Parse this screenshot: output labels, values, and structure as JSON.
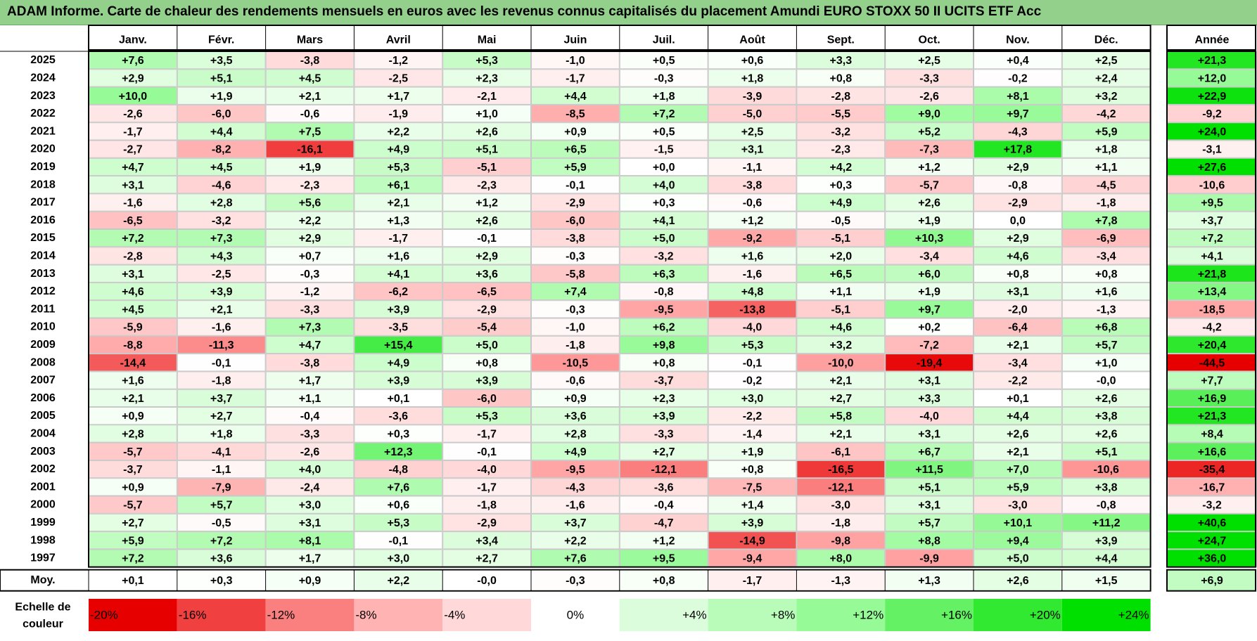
{
  "title": "ADAM Informe. Carte de chaleur des rendements mensuels en euros avec les revenus connus capitalisés du placement Amundi EURO STOXX 50 II UCITS ETF Acc",
  "colors": {
    "title_bg": "#92d08c",
    "neg_max": "#ff0000",
    "pos_max": "#00e000",
    "neutral": "#ffffff"
  },
  "chart_data": {
    "type": "heatmap",
    "title": "ADAM Informe. Carte de chaleur des rendements mensuels en euros avec les revenus connus capitalisés du placement Amundi EURO STOXX 50 II UCITS ETF Acc",
    "months": [
      "Janv.",
      "Févr.",
      "Mars",
      "Avril",
      "Mai",
      "Juin",
      "Juil.",
      "Août",
      "Sept.",
      "Oct.",
      "Nov.",
      "Déc."
    ],
    "year_header": "Année",
    "rows": [
      {
        "year": "2025",
        "values": [
          "+7,6",
          "+3,5",
          "-3,8",
          "-1,2",
          "+5,3",
          "-1,0",
          "+0,5",
          "+0,6",
          "+3,3",
          "+2,5",
          "+0,4",
          "+2,5"
        ],
        "total": "+21,3"
      },
      {
        "year": "2024",
        "values": [
          "+2,9",
          "+5,1",
          "+4,5",
          "-2,5",
          "+2,3",
          "-1,7",
          "-0,3",
          "+1,8",
          "+0,8",
          "-3,3",
          "-0,2",
          "+2,4"
        ],
        "total": "+12,0"
      },
      {
        "year": "2023",
        "values": [
          "+10,0",
          "+1,9",
          "+2,1",
          "+1,7",
          "-2,1",
          "+4,4",
          "+1,8",
          "-3,9",
          "-2,8",
          "-2,6",
          "+8,1",
          "+3,2"
        ],
        "total": "+22,9"
      },
      {
        "year": "2022",
        "values": [
          "-2,6",
          "-6,0",
          "-0,6",
          "-1,9",
          "+1,0",
          "-8,5",
          "+7,2",
          "-5,0",
          "-5,5",
          "+9,0",
          "+9,7",
          "-4,2"
        ],
        "total": "-9,2"
      },
      {
        "year": "2021",
        "values": [
          "-1,7",
          "+4,4",
          "+7,5",
          "+2,2",
          "+2,6",
          "+0,9",
          "+0,5",
          "+2,5",
          "-3,2",
          "+5,2",
          "-4,3",
          "+5,9"
        ],
        "total": "+24,0"
      },
      {
        "year": "2020",
        "values": [
          "-2,7",
          "-8,2",
          "-16,1",
          "+4,9",
          "+5,1",
          "+6,5",
          "-1,5",
          "+3,1",
          "-2,3",
          "-7,3",
          "+17,8",
          "+1,8"
        ],
        "total": "-3,1"
      },
      {
        "year": "2019",
        "values": [
          "+4,7",
          "+4,5",
          "+1,9",
          "+5,3",
          "-5,1",
          "+5,9",
          "+0,0",
          "-1,1",
          "+4,2",
          "+1,2",
          "+2,9",
          "+1,1"
        ],
        "total": "+27,6"
      },
      {
        "year": "2018",
        "values": [
          "+3,1",
          "-4,6",
          "-2,3",
          "+6,1",
          "-2,3",
          "-0,1",
          "+4,0",
          "-3,8",
          "+0,3",
          "-5,7",
          "-0,8",
          "-4,5"
        ],
        "total": "-10,6"
      },
      {
        "year": "2017",
        "values": [
          "-1,6",
          "+2,8",
          "+5,6",
          "+2,1",
          "+1,2",
          "-2,9",
          "+0,3",
          "-0,6",
          "+4,9",
          "+2,6",
          "-2,9",
          "-1,8"
        ],
        "total": "+9,5"
      },
      {
        "year": "2016",
        "values": [
          "-6,5",
          "-3,2",
          "+2,2",
          "+1,3",
          "+2,6",
          "-6,0",
          "+4,1",
          "+1,2",
          "-0,5",
          "+1,9",
          "0,0",
          "+7,8"
        ],
        "total": "+3,7"
      },
      {
        "year": "2015",
        "values": [
          "+7,2",
          "+7,3",
          "+2,9",
          "-1,7",
          "-0,1",
          "-3,8",
          "+5,0",
          "-9,2",
          "-5,1",
          "+10,3",
          "+2,9",
          "-6,9"
        ],
        "total": "+7,2"
      },
      {
        "year": "2014",
        "values": [
          "-2,8",
          "+4,3",
          "+0,7",
          "+1,6",
          "+2,9",
          "-0,3",
          "-3,2",
          "+1,6",
          "+2,0",
          "-3,4",
          "+4,6",
          "-3,4"
        ],
        "total": "+4,1"
      },
      {
        "year": "2013",
        "values": [
          "+3,1",
          "-2,5",
          "-0,3",
          "+4,1",
          "+3,6",
          "-5,8",
          "+6,3",
          "-1,6",
          "+6,5",
          "+6,0",
          "+0,8",
          "+0,8"
        ],
        "total": "+21,8"
      },
      {
        "year": "2012",
        "values": [
          "+4,6",
          "+3,9",
          "-1,2",
          "-6,2",
          "-6,5",
          "+7,4",
          "-0,8",
          "+4,8",
          "+1,1",
          "+1,9",
          "+3,1",
          "+1,6"
        ],
        "total": "+13,4"
      },
      {
        "year": "2011",
        "values": [
          "+4,5",
          "+2,1",
          "-3,3",
          "+3,9",
          "-2,9",
          "-0,3",
          "-9,5",
          "-13,8",
          "-5,1",
          "+9,7",
          "-2,0",
          "-1,3"
        ],
        "total": "-18,5"
      },
      {
        "year": "2010",
        "values": [
          "-5,9",
          "-1,6",
          "+7,3",
          "-3,5",
          "-5,4",
          "-1,0",
          "+6,2",
          "-4,0",
          "+4,6",
          "+0,2",
          "-6,4",
          "+6,8"
        ],
        "total": "-4,2"
      },
      {
        "year": "2009",
        "values": [
          "-8,8",
          "-11,3",
          "+4,7",
          "+15,4",
          "+5,0",
          "-1,8",
          "+9,8",
          "+5,3",
          "+3,2",
          "-7,2",
          "+2,1",
          "+5,7"
        ],
        "total": "+20,4"
      },
      {
        "year": "2008",
        "values": [
          "-14,4",
          "-0,1",
          "-3,8",
          "+4,9",
          "+0,8",
          "-10,5",
          "+0,8",
          "-0,1",
          "-10,0",
          "-19,4",
          "-3,4",
          "+1,0"
        ],
        "total": "-44,5"
      },
      {
        "year": "2007",
        "values": [
          "+1,6",
          "-1,8",
          "+1,7",
          "+3,9",
          "+3,9",
          "-0,6",
          "-3,7",
          "-0,2",
          "+2,1",
          "+3,1",
          "-2,2",
          "-0,0"
        ],
        "total": "+7,7"
      },
      {
        "year": "2006",
        "values": [
          "+2,1",
          "+3,7",
          "+1,1",
          "+0,1",
          "-6,0",
          "+0,9",
          "+2,3",
          "+3,0",
          "+2,7",
          "+3,3",
          "+0,1",
          "+2,6"
        ],
        "total": "+16,9"
      },
      {
        "year": "2005",
        "values": [
          "+0,9",
          "+2,7",
          "-0,4",
          "-3,6",
          "+5,3",
          "+3,6",
          "+3,9",
          "-2,2",
          "+5,8",
          "-4,0",
          "+4,4",
          "+3,8"
        ],
        "total": "+21,3"
      },
      {
        "year": "2004",
        "values": [
          "+2,8",
          "+1,8",
          "-3,3",
          "+0,3",
          "-1,7",
          "+2,8",
          "-3,3",
          "-1,4",
          "+2,1",
          "+3,1",
          "+2,6",
          "+2,6"
        ],
        "total": "+8,4"
      },
      {
        "year": "2003",
        "values": [
          "-5,7",
          "-4,1",
          "-2,6",
          "+12,3",
          "-0,1",
          "+4,9",
          "+2,7",
          "+1,9",
          "-6,1",
          "+6,7",
          "+2,1",
          "+5,1"
        ],
        "total": "+16,6"
      },
      {
        "year": "2002",
        "values": [
          "-3,7",
          "-1,1",
          "+4,0",
          "-4,8",
          "-4,0",
          "-9,5",
          "-12,1",
          "+0,8",
          "-16,5",
          "+11,5",
          "+7,0",
          "-10,6"
        ],
        "total": "-35,4"
      },
      {
        "year": "2001",
        "values": [
          "+0,9",
          "-7,9",
          "-2,4",
          "+7,6",
          "-1,7",
          "-4,3",
          "-3,6",
          "-7,5",
          "-12,1",
          "+5,1",
          "+5,9",
          "+3,8"
        ],
        "total": "-16,7"
      },
      {
        "year": "2000",
        "values": [
          "-5,7",
          "+5,7",
          "+3,0",
          "+0,6",
          "-1,8",
          "-1,6",
          "-0,4",
          "+1,4",
          "-3,0",
          "+3,1",
          "-3,0",
          "-0,8"
        ],
        "total": "-3,2"
      },
      {
        "year": "1999",
        "values": [
          "+2,7",
          "-0,5",
          "+3,1",
          "+5,3",
          "-2,9",
          "+3,7",
          "-4,7",
          "+3,9",
          "-1,8",
          "+5,7",
          "+10,1",
          "+11,2"
        ],
        "total": "+40,6"
      },
      {
        "year": "1998",
        "values": [
          "+5,9",
          "+7,2",
          "+8,1",
          "-0,1",
          "+3,4",
          "+2,2",
          "+1,2",
          "-14,9",
          "-9,8",
          "+8,8",
          "+9,4",
          "+3,9"
        ],
        "total": "+24,7"
      },
      {
        "year": "1997",
        "values": [
          "+7,2",
          "+3,6",
          "+1,7",
          "+3,0",
          "+2,7",
          "+7,6",
          "+9,5",
          "-9,4",
          "+8,0",
          "-9,9",
          "+5,0",
          "+4,4"
        ],
        "total": "+36,0"
      }
    ],
    "average": {
      "label": "Moy.",
      "values": [
        "+0,1",
        "+0,3",
        "+0,9",
        "+2,2",
        "-0,0",
        "-0,3",
        "+0,8",
        "-1,7",
        "-1,3",
        "+1,3",
        "+2,6",
        "+1,5"
      ],
      "total": "+6,9"
    },
    "scale": {
      "label_line1": "Echelle de",
      "label_line2": "couleur",
      "steps": [
        {
          "label": "-20%",
          "value": -20
        },
        {
          "label": "-16%",
          "value": -16
        },
        {
          "label": "-12%",
          "value": -12
        },
        {
          "label": "-8%",
          "value": -8
        },
        {
          "label": "-4%",
          "value": -4
        },
        {
          "label": "0%",
          "value": 0
        },
        {
          "label": "+4%",
          "value": 4
        },
        {
          "label": "+8%",
          "value": 8
        },
        {
          "label": "+12%",
          "value": 12
        },
        {
          "label": "+16%",
          "value": 16
        },
        {
          "label": "+20%",
          "value": 20
        },
        {
          "label": "+24%",
          "value": 24
        }
      ]
    }
  }
}
